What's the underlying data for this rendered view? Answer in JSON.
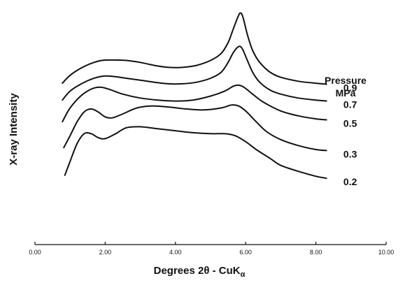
{
  "chart_data": {
    "type": "line",
    "xlabel": "Degrees 2θ - CuK",
    "xlabel_subscript": "α",
    "ylabel": "X-ray Intensity",
    "xlim": [
      0,
      10
    ],
    "x_ticks": [
      "0.00",
      "2.00",
      "4.00",
      "6.00",
      "8.00",
      "10.00"
    ],
    "y_ticks_shown": false,
    "grid": false,
    "legend_title": [
      "Pressure",
      "MPa"
    ],
    "legend_placement": "right, labels at curve ends",
    "series": [
      {
        "name": "0.9",
        "points": [
          [
            0.78,
            8.15
          ],
          [
            1.0,
            8.55
          ],
          [
            1.3,
            8.9
          ],
          [
            1.6,
            9.15
          ],
          [
            1.9,
            9.3
          ],
          [
            2.2,
            9.32
          ],
          [
            2.6,
            9.3
          ],
          [
            3.0,
            9.2
          ],
          [
            3.4,
            9.05
          ],
          [
            3.8,
            8.95
          ],
          [
            4.2,
            8.95
          ],
          [
            4.6,
            9.05
          ],
          [
            5.0,
            9.3
          ],
          [
            5.3,
            9.65
          ],
          [
            5.5,
            10.2
          ],
          [
            5.65,
            10.9
          ],
          [
            5.78,
            11.5
          ],
          [
            5.85,
            11.7
          ],
          [
            5.92,
            11.5
          ],
          [
            6.05,
            10.6
          ],
          [
            6.2,
            9.8
          ],
          [
            6.4,
            9.2
          ],
          [
            6.7,
            8.7
          ],
          [
            7.0,
            8.45
          ],
          [
            7.5,
            8.25
          ],
          [
            8.0,
            8.15
          ],
          [
            8.3,
            8.1
          ]
        ]
      },
      {
        "name": "0.7",
        "points": [
          [
            0.78,
            7.3
          ],
          [
            1.0,
            7.75
          ],
          [
            1.3,
            8.1
          ],
          [
            1.6,
            8.35
          ],
          [
            1.9,
            8.5
          ],
          [
            2.2,
            8.5
          ],
          [
            2.6,
            8.4
          ],
          [
            3.0,
            8.3
          ],
          [
            3.4,
            8.2
          ],
          [
            3.8,
            8.12
          ],
          [
            4.2,
            8.12
          ],
          [
            4.6,
            8.2
          ],
          [
            5.0,
            8.4
          ],
          [
            5.3,
            8.7
          ],
          [
            5.5,
            9.2
          ],
          [
            5.65,
            9.7
          ],
          [
            5.8,
            10.0
          ],
          [
            5.9,
            9.9
          ],
          [
            6.05,
            9.3
          ],
          [
            6.2,
            8.7
          ],
          [
            6.4,
            8.2
          ],
          [
            6.7,
            7.8
          ],
          [
            7.0,
            7.6
          ],
          [
            7.5,
            7.4
          ],
          [
            8.0,
            7.3
          ],
          [
            8.3,
            7.25
          ]
        ]
      },
      {
        "name": "0.5",
        "points": [
          [
            0.78,
            6.2
          ],
          [
            1.0,
            6.9
          ],
          [
            1.3,
            7.5
          ],
          [
            1.6,
            7.85
          ],
          [
            1.85,
            7.95
          ],
          [
            2.1,
            7.85
          ],
          [
            2.5,
            7.6
          ],
          [
            3.0,
            7.4
          ],
          [
            3.5,
            7.3
          ],
          [
            4.0,
            7.25
          ],
          [
            4.5,
            7.3
          ],
          [
            5.0,
            7.5
          ],
          [
            5.4,
            7.75
          ],
          [
            5.65,
            8.0
          ],
          [
            5.8,
            8.05
          ],
          [
            5.95,
            7.95
          ],
          [
            6.2,
            7.6
          ],
          [
            6.5,
            7.2
          ],
          [
            7.0,
            6.75
          ],
          [
            7.5,
            6.5
          ],
          [
            8.0,
            6.35
          ],
          [
            8.3,
            6.3
          ]
        ]
      },
      {
        "name": "0.3",
        "points": [
          [
            0.82,
            4.9
          ],
          [
            1.0,
            5.5
          ],
          [
            1.2,
            6.2
          ],
          [
            1.4,
            6.7
          ],
          [
            1.6,
            6.85
          ],
          [
            1.8,
            6.7
          ],
          [
            2.0,
            6.45
          ],
          [
            2.2,
            6.4
          ],
          [
            2.5,
            6.6
          ],
          [
            2.9,
            6.9
          ],
          [
            3.3,
            7.0
          ],
          [
            3.8,
            6.95
          ],
          [
            4.3,
            6.85
          ],
          [
            4.8,
            6.8
          ],
          [
            5.3,
            6.9
          ],
          [
            5.6,
            7.05
          ],
          [
            5.8,
            7.0
          ],
          [
            6.0,
            6.75
          ],
          [
            6.3,
            6.2
          ],
          [
            6.6,
            5.7
          ],
          [
            7.0,
            5.3
          ],
          [
            7.5,
            5.0
          ],
          [
            8.0,
            4.8
          ],
          [
            8.3,
            4.75
          ]
        ]
      },
      {
        "name": "0.2",
        "points": [
          [
            0.85,
            3.5
          ],
          [
            1.0,
            4.2
          ],
          [
            1.2,
            5.1
          ],
          [
            1.4,
            5.6
          ],
          [
            1.6,
            5.6
          ],
          [
            1.8,
            5.4
          ],
          [
            2.0,
            5.35
          ],
          [
            2.3,
            5.6
          ],
          [
            2.6,
            5.9
          ],
          [
            3.0,
            5.95
          ],
          [
            3.5,
            5.85
          ],
          [
            4.0,
            5.75
          ],
          [
            4.5,
            5.65
          ],
          [
            5.0,
            5.6
          ],
          [
            5.4,
            5.6
          ],
          [
            5.7,
            5.5
          ],
          [
            6.0,
            5.2
          ],
          [
            6.3,
            4.8
          ],
          [
            6.7,
            4.35
          ],
          [
            7.0,
            4.0
          ],
          [
            7.5,
            3.7
          ],
          [
            8.0,
            3.45
          ],
          [
            8.3,
            3.35
          ]
        ]
      }
    ]
  }
}
